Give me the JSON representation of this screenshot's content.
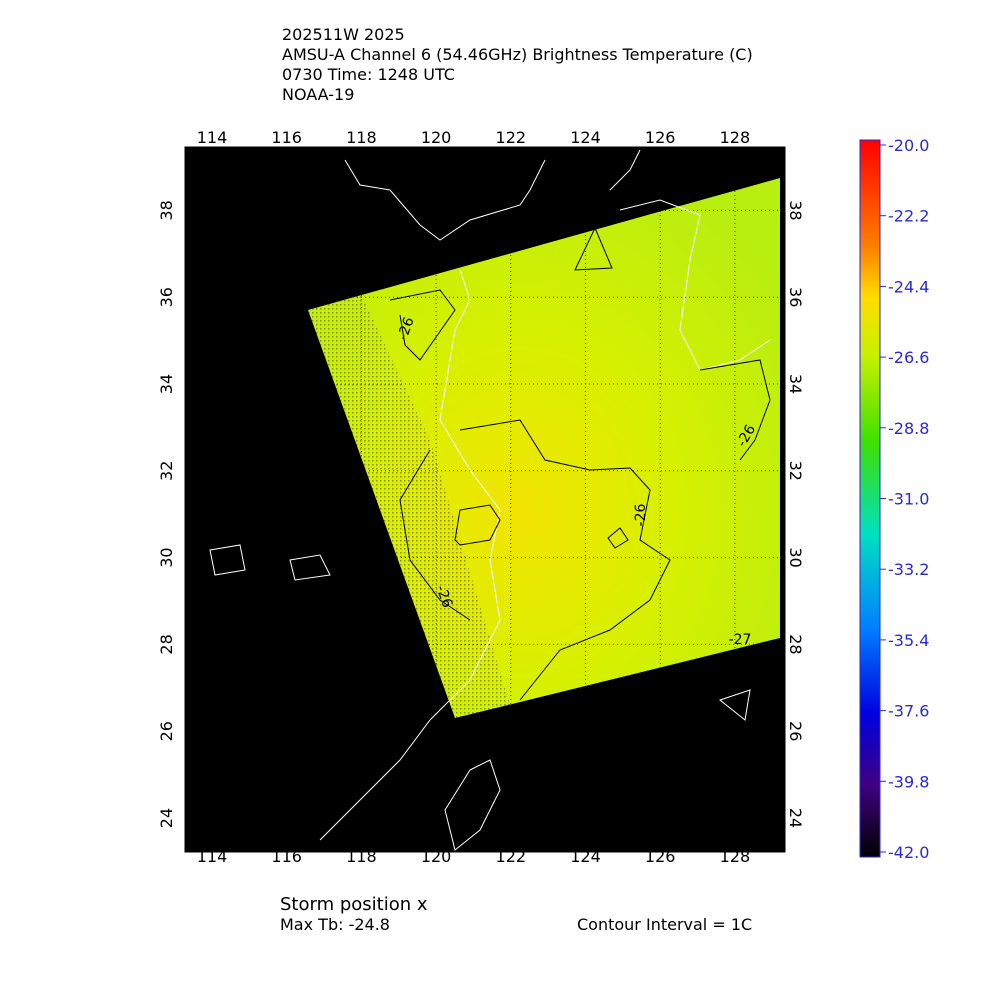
{
  "header": {
    "lines": [
      "202511W 2025",
      "AMSU-A Channel 6 (54.46GHz) Brightness Temperature (C)",
      "0730 Time: 1248 UTC",
      "NOAA-19"
    ]
  },
  "map": {
    "lon_ticks": [
      "114",
      "116",
      "118",
      "120",
      "122",
      "124",
      "126",
      "128"
    ],
    "lat_ticks": [
      "24",
      "26",
      "28",
      "30",
      "32",
      "34",
      "36",
      "38"
    ],
    "contour_labels": [
      "-26",
      "-26",
      "-26",
      "-26",
      "-27"
    ]
  },
  "colorbar": {
    "labels": [
      "-20.0",
      "-22.2",
      "-24.4",
      "-26.6",
      "-28.8",
      "-31.0",
      "-33.2",
      "-35.4",
      "-37.6",
      "-39.8",
      "-42.0"
    ]
  },
  "footer": {
    "storm": "Storm position x",
    "max_tb": "Max Tb: -24.8",
    "interval": "Contour Interval = 1C"
  }
}
